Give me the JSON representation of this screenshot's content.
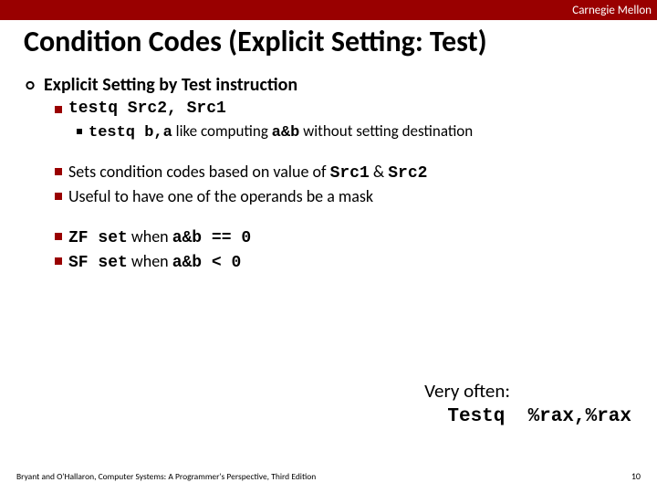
{
  "colors": {
    "brand": "#990000",
    "bg": "#ffffff",
    "text": "#000000"
  },
  "topbar": {
    "label": "Carnegie Mellon"
  },
  "title": "Condition Codes (Explicit Setting: Test)",
  "heading": "Explicit Setting by Test instruction",
  "b1": {
    "cmd": "testq Src2, Src1"
  },
  "b1a": {
    "cmd": "testq b,a",
    "rest": " like computing ",
    "expr": "a&b",
    "rest2": " without setting destination"
  },
  "b2": {
    "pre": "Sets condition codes based on value of ",
    "s1": "Src1",
    "amp": " & ",
    "s2": "Src2"
  },
  "b3": "Useful to have one of the operands be a mask",
  "b4": {
    "flag": "ZF set",
    "mid": " when ",
    "expr": "a&b == 0"
  },
  "b5": {
    "flag": "SF set",
    "mid": " when ",
    "expr": "a&b < 0"
  },
  "box": {
    "line1": "Very often:",
    "line2_a": "  Testq  ",
    "line2_b": "%rax,%rax"
  },
  "footer": {
    "left": "Bryant and O'Hallaron, Computer Systems: A Programmer's Perspective, Third Edition",
    "page": "10"
  }
}
